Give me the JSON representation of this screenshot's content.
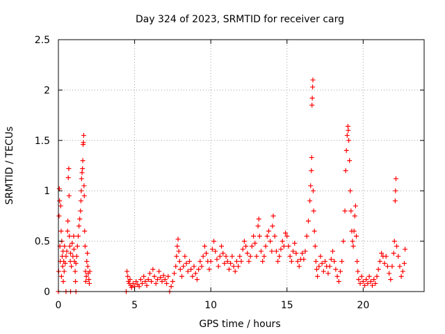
{
  "chart_data": {
    "type": "scatter",
    "title": "Day 324 of 2023, SRMTID for receiver carg",
    "xlabel": "GPS time / hours",
    "ylabel": "SRMTID / TECUs",
    "xlim": [
      0,
      24
    ],
    "ylim": [
      0,
      2.5
    ],
    "grid": true,
    "marker": "+",
    "xticks": [
      0,
      5,
      10,
      15,
      20
    ],
    "xtick_labels": [
      "0",
      "5",
      "10",
      "15",
      "20"
    ],
    "yticks": [
      0,
      0.5,
      1,
      1.5,
      2,
      2.5
    ],
    "ytick_labels": [
      "0",
      "0.5",
      "1",
      "1.5",
      "2",
      "2.5"
    ],
    "series": [
      {
        "name": "SRMTID",
        "color": "#ff0000",
        "points": [
          [
            0.02,
            0.2
          ],
          [
            0.04,
            0.75
          ],
          [
            0.06,
            1.02
          ],
          [
            0.08,
            0.9
          ],
          [
            0.1,
            0.45
          ],
          [
            0.12,
            0.3
          ],
          [
            0.15,
            0.85
          ],
          [
            0.18,
            0.6
          ],
          [
            0.2,
            0.15
          ],
          [
            0.22,
            0.5
          ],
          [
            0.25,
            0.35
          ],
          [
            0.28,
            0.25
          ],
          [
            0.3,
            0.4
          ],
          [
            0.32,
            0.1
          ],
          [
            0.35,
            0.3
          ],
          [
            0.38,
            0.2
          ],
          [
            0.4,
            0.45
          ],
          [
            0.45,
            0.28
          ],
          [
            0.5,
            0.35
          ],
          [
            0.55,
            0.4
          ],
          [
            0.6,
            0.6
          ],
          [
            0.62,
            0.7
          ],
          [
            0.65,
            1.13
          ],
          [
            0.68,
            1.22
          ],
          [
            0.7,
            0.95
          ],
          [
            0.72,
            0.55
          ],
          [
            0.75,
            0.45
          ],
          [
            0.78,
            0.3
          ],
          [
            0.8,
            0.38
          ],
          [
            0.85,
            0.25
          ],
          [
            0.9,
            0.48
          ],
          [
            0.95,
            0.35
          ],
          [
            1.0,
            0.55
          ],
          [
            1.02,
            0.42
          ],
          [
            1.05,
            0.3
          ],
          [
            1.1,
            0.2
          ],
          [
            1.12,
            0.1
          ],
          [
            1.15,
            0.28
          ],
          [
            1.2,
            0.35
          ],
          [
            1.25,
            0.45
          ],
          [
            1.3,
            0.55
          ],
          [
            1.35,
            0.65
          ],
          [
            1.4,
            0.72
          ],
          [
            1.45,
            0.8
          ],
          [
            1.48,
            0.9
          ],
          [
            1.5,
            1.0
          ],
          [
            1.52,
            1.12
          ],
          [
            1.55,
            1.18
          ],
          [
            1.58,
            1.22
          ],
          [
            1.6,
            1.3
          ],
          [
            1.62,
            1.46
          ],
          [
            1.64,
            1.48
          ],
          [
            1.66,
            1.55
          ],
          [
            1.68,
            1.05
          ],
          [
            1.7,
            0.95
          ],
          [
            1.72,
            0.6
          ],
          [
            1.75,
            0.45
          ],
          [
            1.78,
            0.2
          ],
          [
            1.8,
            0.1
          ],
          [
            1.83,
            0.15
          ],
          [
            1.86,
            0.3
          ],
          [
            1.9,
            0.38
          ],
          [
            1.93,
            0.25
          ],
          [
            1.96,
            0.18
          ],
          [
            2.0,
            0.12
          ],
          [
            2.03,
            0.08
          ],
          [
            2.06,
            0.2
          ],
          [
            0.0,
            0.0
          ],
          [
            0.5,
            0.0
          ],
          [
            0.8,
            0.0
          ],
          [
            1.15,
            0.0
          ],
          [
            4.45,
            0.0
          ],
          [
            7.3,
            0.0
          ],
          [
            4.5,
            0.2
          ],
          [
            4.55,
            0.15
          ],
          [
            4.6,
            0.1
          ],
          [
            4.65,
            0.08
          ],
          [
            4.7,
            0.12
          ],
          [
            4.75,
            0.06
          ],
          [
            4.8,
            0.04
          ],
          [
            4.9,
            0.08
          ],
          [
            5.0,
            0.05
          ],
          [
            5.1,
            0.1
          ],
          [
            5.2,
            0.07
          ],
          [
            5.3,
            0.05
          ],
          [
            5.4,
            0.12
          ],
          [
            5.5,
            0.08
          ],
          [
            5.6,
            0.15
          ],
          [
            5.7,
            0.1
          ],
          [
            5.8,
            0.06
          ],
          [
            5.9,
            0.12
          ],
          [
            6.0,
            0.18
          ],
          [
            6.1,
            0.1
          ],
          [
            6.2,
            0.22
          ],
          [
            6.3,
            0.15
          ],
          [
            6.4,
            0.08
          ],
          [
            6.5,
            0.12
          ],
          [
            6.6,
            0.2
          ],
          [
            6.7,
            0.14
          ],
          [
            6.8,
            0.1
          ],
          [
            6.9,
            0.16
          ],
          [
            7.0,
            0.12
          ],
          [
            7.1,
            0.08
          ],
          [
            7.2,
            0.15
          ],
          [
            7.4,
            0.05
          ],
          [
            7.5,
            0.1
          ],
          [
            7.6,
            0.18
          ],
          [
            7.7,
            0.25
          ],
          [
            7.75,
            0.35
          ],
          [
            7.8,
            0.45
          ],
          [
            7.85,
            0.52
          ],
          [
            7.9,
            0.4
          ],
          [
            7.95,
            0.3
          ],
          [
            8.0,
            0.22
          ],
          [
            8.1,
            0.15
          ],
          [
            8.2,
            0.25
          ],
          [
            8.3,
            0.35
          ],
          [
            8.4,
            0.28
          ],
          [
            8.5,
            0.2
          ],
          [
            8.6,
            0.3
          ],
          [
            8.7,
            0.22
          ],
          [
            8.8,
            0.15
          ],
          [
            8.9,
            0.25
          ],
          [
            9.0,
            0.18
          ],
          [
            9.1,
            0.12
          ],
          [
            9.2,
            0.22
          ],
          [
            9.3,
            0.3
          ],
          [
            9.4,
            0.25
          ],
          [
            9.5,
            0.35
          ],
          [
            9.6,
            0.45
          ],
          [
            9.7,
            0.38
          ],
          [
            9.8,
            0.3
          ],
          [
            9.9,
            0.22
          ],
          [
            10.0,
            0.3
          ],
          [
            10.1,
            0.42
          ],
          [
            10.2,
            0.5
          ],
          [
            10.3,
            0.4
          ],
          [
            10.4,
            0.32
          ],
          [
            10.5,
            0.25
          ],
          [
            10.6,
            0.35
          ],
          [
            10.7,
            0.45
          ],
          [
            10.8,
            0.38
          ],
          [
            10.9,
            0.28
          ],
          [
            11.0,
            0.35
          ],
          [
            11.1,
            0.3
          ],
          [
            11.2,
            0.22
          ],
          [
            11.3,
            0.28
          ],
          [
            11.4,
            0.35
          ],
          [
            11.5,
            0.25
          ],
          [
            11.6,
            0.2
          ],
          [
            11.7,
            0.3
          ],
          [
            11.8,
            0.25
          ],
          [
            11.9,
            0.35
          ],
          [
            12.0,
            0.3
          ],
          [
            12.1,
            0.42
          ],
          [
            12.2,
            0.5
          ],
          [
            12.3,
            0.45
          ],
          [
            12.4,
            0.38
          ],
          [
            12.5,
            0.3
          ],
          [
            12.6,
            0.35
          ],
          [
            12.7,
            0.45
          ],
          [
            12.8,
            0.55
          ],
          [
            12.9,
            0.48
          ],
          [
            13.0,
            0.35
          ],
          [
            13.1,
            0.65
          ],
          [
            13.15,
            0.72
          ],
          [
            13.2,
            0.55
          ],
          [
            13.3,
            0.4
          ],
          [
            13.4,
            0.3
          ],
          [
            13.5,
            0.35
          ],
          [
            13.6,
            0.45
          ],
          [
            13.7,
            0.55
          ],
          [
            13.8,
            0.6
          ],
          [
            13.9,
            0.5
          ],
          [
            14.0,
            0.4
          ],
          [
            14.05,
            0.65
          ],
          [
            14.1,
            0.75
          ],
          [
            14.2,
            0.55
          ],
          [
            14.3,
            0.4
          ],
          [
            14.4,
            0.3
          ],
          [
            14.5,
            0.35
          ],
          [
            14.6,
            0.42
          ],
          [
            14.7,
            0.5
          ],
          [
            14.8,
            0.45
          ],
          [
            14.9,
            0.58
          ],
          [
            15.0,
            0.55
          ],
          [
            15.1,
            0.45
          ],
          [
            15.2,
            0.35
          ],
          [
            15.3,
            0.3
          ],
          [
            15.4,
            0.4
          ],
          [
            15.5,
            0.48
          ],
          [
            15.6,
            0.38
          ],
          [
            15.7,
            0.3
          ],
          [
            15.8,
            0.25
          ],
          [
            15.9,
            0.32
          ],
          [
            16.0,
            0.38
          ],
          [
            16.1,
            0.32
          ],
          [
            16.2,
            0.4
          ],
          [
            16.3,
            0.55
          ],
          [
            16.4,
            0.7
          ],
          [
            16.5,
            0.9
          ],
          [
            16.55,
            1.05
          ],
          [
            16.6,
            1.2
          ],
          [
            16.62,
            1.33
          ],
          [
            16.64,
            1.85
          ],
          [
            16.66,
            1.92
          ],
          [
            16.68,
            2.03
          ],
          [
            16.7,
            2.1
          ],
          [
            16.72,
            1.0
          ],
          [
            16.75,
            0.8
          ],
          [
            16.8,
            0.6
          ],
          [
            16.85,
            0.45
          ],
          [
            16.9,
            0.3
          ],
          [
            16.95,
            0.22
          ],
          [
            17.0,
            0.15
          ],
          [
            17.1,
            0.25
          ],
          [
            17.2,
            0.35
          ],
          [
            17.3,
            0.28
          ],
          [
            17.4,
            0.2
          ],
          [
            17.5,
            0.3
          ],
          [
            17.6,
            0.25
          ],
          [
            17.7,
            0.18
          ],
          [
            17.8,
            0.25
          ],
          [
            17.9,
            0.32
          ],
          [
            18.0,
            0.4
          ],
          [
            18.1,
            0.3
          ],
          [
            18.2,
            0.22
          ],
          [
            18.3,
            0.15
          ],
          [
            18.4,
            0.1
          ],
          [
            18.5,
            0.2
          ],
          [
            18.6,
            0.3
          ],
          [
            18.7,
            0.5
          ],
          [
            18.8,
            0.8
          ],
          [
            18.85,
            1.2
          ],
          [
            18.9,
            1.4
          ],
          [
            18.95,
            1.55
          ],
          [
            19.0,
            1.64
          ],
          [
            19.02,
            1.6
          ],
          [
            19.05,
            1.5
          ],
          [
            19.1,
            1.3
          ],
          [
            19.15,
            1.0
          ],
          [
            19.2,
            0.8
          ],
          [
            19.25,
            0.6
          ],
          [
            19.3,
            0.5
          ],
          [
            19.35,
            0.45
          ],
          [
            19.4,
            0.6
          ],
          [
            19.45,
            0.75
          ],
          [
            19.5,
            0.85
          ],
          [
            19.55,
            0.55
          ],
          [
            19.6,
            0.3
          ],
          [
            19.65,
            0.2
          ],
          [
            19.7,
            0.12
          ],
          [
            19.8,
            0.08
          ],
          [
            19.9,
            0.15
          ],
          [
            20.0,
            0.1
          ],
          [
            20.1,
            0.06
          ],
          [
            20.2,
            0.12
          ],
          [
            20.3,
            0.08
          ],
          [
            20.4,
            0.15
          ],
          [
            20.5,
            0.1
          ],
          [
            20.6,
            0.06
          ],
          [
            20.7,
            0.12
          ],
          [
            20.8,
            0.08
          ],
          [
            20.9,
            0.15
          ],
          [
            21.0,
            0.22
          ],
          [
            21.1,
            0.3
          ],
          [
            21.2,
            0.38
          ],
          [
            21.3,
            0.35
          ],
          [
            21.4,
            0.28
          ],
          [
            21.5,
            0.35
          ],
          [
            21.6,
            0.25
          ],
          [
            21.7,
            0.18
          ],
          [
            21.8,
            0.12
          ],
          [
            21.9,
            0.25
          ],
          [
            22.0,
            0.38
          ],
          [
            22.05,
            0.5
          ],
          [
            22.1,
            0.9
          ],
          [
            22.12,
            1.0
          ],
          [
            22.15,
            1.12
          ],
          [
            22.2,
            0.45
          ],
          [
            22.3,
            0.35
          ],
          [
            22.4,
            0.25
          ],
          [
            22.5,
            0.15
          ],
          [
            22.6,
            0.2
          ],
          [
            22.7,
            0.28
          ],
          [
            22.75,
            0.42
          ]
        ]
      }
    ]
  }
}
